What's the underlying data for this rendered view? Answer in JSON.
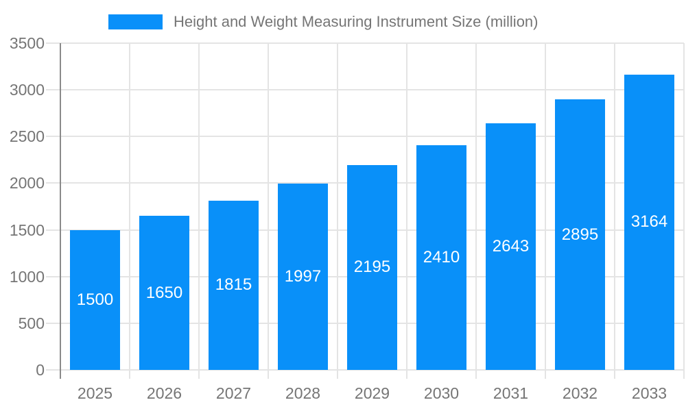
{
  "chart_data": {
    "type": "bar",
    "title": "Height and Weight Measuring Instrument Size (million)",
    "categories": [
      "2025",
      "2026",
      "2027",
      "2028",
      "2029",
      "2030",
      "2031",
      "2032",
      "2033"
    ],
    "series": [
      {
        "name": "Height and Weight Measuring Instrument Size (million)",
        "values": [
          1500,
          1650,
          1815,
          1997,
          2195,
          2410,
          2643,
          2895,
          3164
        ]
      }
    ],
    "value_labels": "inside-center",
    "xlabel": "",
    "ylabel": "",
    "ylim": [
      0,
      3500
    ],
    "yticks": [
      0,
      500,
      1000,
      1500,
      2000,
      2500,
      3000,
      3500
    ],
    "grid": true,
    "legend_position": "top",
    "colors": {
      "bar": "#0990F9",
      "value_label": "#FFFFFF",
      "axis_text": "#757575",
      "grid_line": "#E4E4E4",
      "axis_line": "#8A8A8A",
      "background": "#FFFFFF"
    }
  }
}
